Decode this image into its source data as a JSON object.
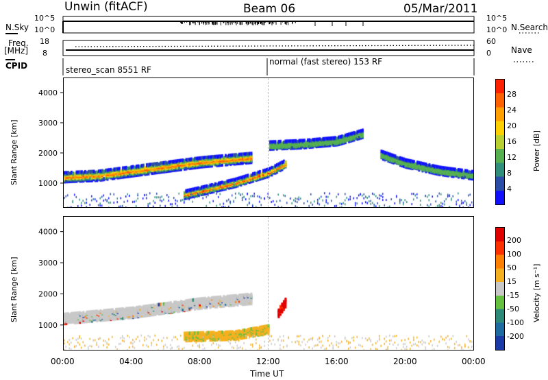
{
  "header": {
    "station": "Unwin (fitACF)",
    "beam": "Beam 06",
    "date": "05/Mar/2011"
  },
  "top_panels": {
    "nsky_label": "N.Sky",
    "nsearch_label": "N.Search",
    "nsky_ticks": [
      "10^5",
      "10^0"
    ],
    "nsearch_ticks": [
      "10^5",
      "10^0"
    ],
    "freq_label": "Freq.",
    "freq_unit": "[MHz]",
    "freq_ticks": [
      "18",
      "8"
    ],
    "nave_label": "Nave",
    "nave_ticks": [
      "60",
      "0"
    ],
    "cpid_label": "CPID",
    "cpid_modes": [
      {
        "label": "stereo_scan 8551 RF",
        "start_hour": 0
      },
      {
        "label": "normal (fast stereo) 153 RF",
        "start_hour": 12
      }
    ]
  },
  "chart_data": [
    {
      "type": "heatmap",
      "panel": "power",
      "ylabel": "Slant Range [km]",
      "xlabel": "",
      "ylim": [
        180,
        4500
      ],
      "yticks": [
        1000,
        2000,
        3000,
        4000
      ],
      "xlim": [
        0,
        24
      ],
      "colorbar": {
        "label": "Power [dB]",
        "range": [
          0,
          32
        ],
        "ticks": [
          4,
          8,
          12,
          16,
          20,
          24,
          28
        ],
        "colors": [
          "#1010ff",
          "#2a4da8",
          "#2f8f7a",
          "#56b050",
          "#b8d030",
          "#ffd000",
          "#ffa000",
          "#ff6000",
          "#ff2000"
        ]
      },
      "features": [
        {
          "name": "main echo band",
          "x": [
            0,
            2,
            4,
            6,
            8,
            10,
            11
          ],
          "y": [
            1250,
            1300,
            1450,
            1600,
            1750,
            1850,
            1900
          ]
        },
        {
          "name": "lower descending band",
          "x": [
            7,
            8,
            10,
            12,
            13
          ],
          "y": [
            650,
            780,
            1050,
            1400,
            1700
          ]
        },
        {
          "name": "high echoes",
          "x": [
            12,
            14,
            16,
            17.5
          ],
          "y": [
            2300,
            2350,
            2450,
            2700
          ]
        },
        {
          "name": "post-midnight band",
          "x": [
            18.5,
            20,
            22,
            24
          ],
          "y": [
            2000,
            1700,
            1450,
            1300
          ]
        }
      ]
    },
    {
      "type": "heatmap",
      "panel": "velocity",
      "ylabel": "Slant Range [km]",
      "xlabel": "Time UT",
      "ylim": [
        180,
        4500
      ],
      "yticks": [
        1000,
        2000,
        3000,
        4000
      ],
      "xlim": [
        0,
        24
      ],
      "xticks": [
        "00:00",
        "04:00",
        "08:00",
        "12:00",
        "16:00",
        "20:00",
        "00:00"
      ],
      "colorbar": {
        "label": "Velocity [m s⁻¹]",
        "ticks": [
          "200",
          "100",
          "50",
          "15",
          "-15",
          "-50",
          "-100",
          "-200"
        ],
        "colors": [
          "#1a3aa8",
          "#1f6aa0",
          "#2e8a78",
          "#66c040",
          "#c8c8c8",
          "#f5b020",
          "#ff8000",
          "#ff3000",
          "#e00000"
        ]
      },
      "features": [
        {
          "name": "ground scatter band (grey)",
          "x": [
            0,
            4,
            8,
            11
          ],
          "y": [
            1250,
            1450,
            1750,
            1900
          ]
        },
        {
          "name": "negative velocity band (orange)",
          "x": [
            7,
            10,
            12
          ],
          "y": [
            650,
            700,
            900
          ]
        },
        {
          "name": "strong negative (red)",
          "x": [
            12.5,
            13
          ],
          "y": [
            1400,
            1800
          ]
        }
      ]
    }
  ]
}
